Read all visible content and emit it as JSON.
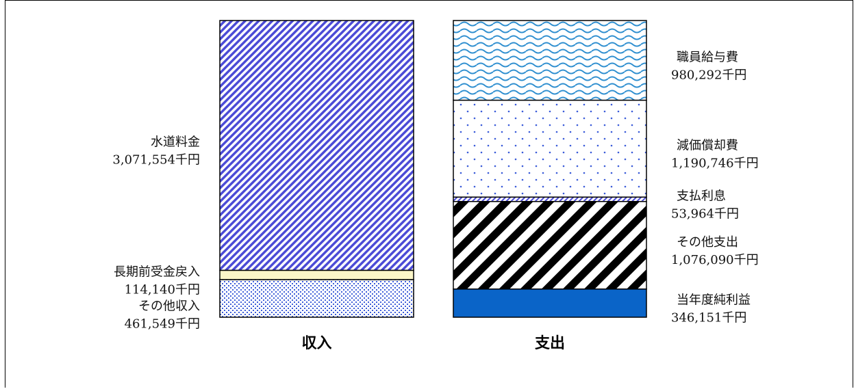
{
  "chart_data": {
    "type": "bar",
    "stacked": true,
    "unit": "千円",
    "columns": [
      {
        "name": "収入",
        "segments": [
          {
            "label": "水道料金",
            "value": 3071554,
            "value_text": "3,071,554千円",
            "fill": "diag-blue"
          },
          {
            "label": "長期前受金戻入",
            "value": 114140,
            "value_text": "114,140千円",
            "fill": "cream"
          },
          {
            "label": "その他収入",
            "value": 461549,
            "value_text": "461,549千円",
            "fill": "dots-dense"
          }
        ]
      },
      {
        "name": "支出",
        "segments": [
          {
            "label": "職員給与費",
            "value": 980292,
            "value_text": "980,292千円",
            "fill": "waves"
          },
          {
            "label": "減価償却費",
            "value": 1190746,
            "value_text": "1,190,746千円",
            "fill": "dots-sparse"
          },
          {
            "label": "支払利息",
            "value": 53964,
            "value_text": "53,964千円",
            "fill": "diag-thin"
          },
          {
            "label": "その他支出",
            "value": 1076090,
            "value_text": "1,076,090千円",
            "fill": "diag-black"
          },
          {
            "label": "当年度純利益",
            "value": 346151,
            "value_text": "346,151千円",
            "fill": "solid-blue"
          }
        ]
      }
    ]
  },
  "colors": {
    "blue_stripe": "#4b4bd6",
    "cream": "#fbf6c8",
    "dot_blue": "#3a5bd9",
    "wave_blue": "#2f8fd0",
    "wave_bg": "#cfe6f7",
    "solid_blue": "#0a64c8",
    "black": "#000000"
  }
}
